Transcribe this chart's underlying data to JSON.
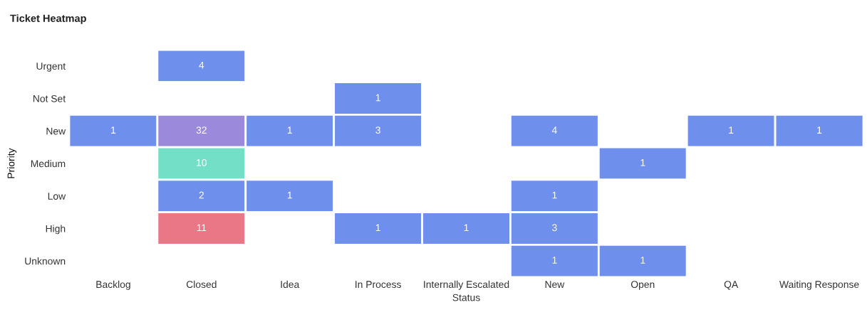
{
  "chart_data": {
    "type": "heatmap",
    "title": "Ticket Heatmap",
    "xlabel": "Status",
    "ylabel": "Priority",
    "categories": [
      "Backlog",
      "Closed",
      "Idea",
      "In Process",
      "Internally Escalated",
      "New",
      "Open",
      "QA",
      "Waiting Response"
    ],
    "y_categories": [
      "Urgent",
      "Not Set",
      "New",
      "Medium",
      "Low",
      "High",
      "Unknown"
    ],
    "cells": [
      [
        null,
        4,
        null,
        null,
        null,
        null,
        null,
        null,
        null
      ],
      [
        null,
        null,
        null,
        1,
        null,
        null,
        null,
        null,
        null
      ],
      [
        1,
        32,
        1,
        3,
        null,
        4,
        null,
        1,
        1
      ],
      [
        null,
        10,
        null,
        null,
        null,
        null,
        1,
        null,
        null
      ],
      [
        null,
        2,
        1,
        null,
        null,
        1,
        null,
        null,
        null
      ],
      [
        null,
        11,
        null,
        1,
        1,
        3,
        null,
        null,
        null
      ],
      [
        null,
        null,
        null,
        null,
        null,
        1,
        1,
        null,
        null
      ]
    ],
    "colors": [
      [
        null,
        "#6f8fec",
        null,
        null,
        null,
        null,
        null,
        null,
        null
      ],
      [
        null,
        null,
        null,
        "#6f8fec",
        null,
        null,
        null,
        null,
        null
      ],
      [
        "#6f8fec",
        "#9b89db",
        "#6f8fec",
        "#6f8fec",
        null,
        "#6f8fec",
        null,
        "#6f8fec",
        "#6f8fec"
      ],
      [
        null,
        "#74dfc7",
        null,
        null,
        null,
        null,
        "#6f8fec",
        null,
        null
      ],
      [
        null,
        "#6f8fec",
        "#6f8fec",
        null,
        null,
        "#6f8fec",
        null,
        null,
        null
      ],
      [
        null,
        "#ea7785",
        null,
        "#6f8fec",
        "#6f8fec",
        "#6f8fec",
        null,
        null,
        null
      ],
      [
        null,
        null,
        null,
        null,
        null,
        "#6f8fec",
        "#6f8fec",
        null,
        null
      ]
    ],
    "data_labels": true
  }
}
